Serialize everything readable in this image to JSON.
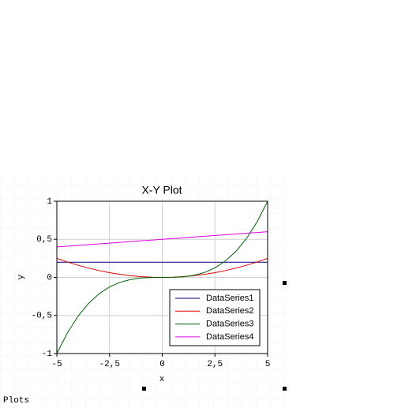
{
  "panel_label": "Plots",
  "chart_data": {
    "type": "line",
    "title": "X-Y Plot",
    "x_label": "x",
    "y_label": "y",
    "x": [
      -5,
      -4.5,
      -4,
      -3.5,
      -3,
      -2.5,
      -2,
      -1.5,
      -1,
      -0.5,
      0,
      0.5,
      1,
      1.5,
      2,
      2.5,
      3,
      3.5,
      4,
      4.5,
      5
    ],
    "series": [
      {
        "name": "DataSeries1",
        "color": "#000080",
        "values": [
          0.2,
          0.2,
          0.2,
          0.2,
          0.2,
          0.2,
          0.2,
          0.2,
          0.2,
          0.2,
          0.2,
          0.2,
          0.2,
          0.2,
          0.2,
          0.2,
          0.2,
          0.2,
          0.2,
          0.2,
          0.2
        ]
      },
      {
        "name": "DataSeries2",
        "color": "#e00000",
        "values": [
          0.25,
          0.2025,
          0.16,
          0.1225,
          0.09,
          0.0625,
          0.04,
          0.0225,
          0.01,
          0.0025,
          0,
          0.0025,
          0.01,
          0.0225,
          0.04,
          0.0625,
          0.09,
          0.1225,
          0.16,
          0.2025,
          0.25
        ]
      },
      {
        "name": "DataSeries3",
        "color": "#006000",
        "values": [
          -1,
          -0.729,
          -0.512,
          -0.343,
          -0.216,
          -0.125,
          -0.064,
          -0.027,
          -0.008,
          -0.001,
          0,
          0.001,
          0.008,
          0.027,
          0.064,
          0.125,
          0.216,
          0.343,
          0.512,
          0.729,
          1
        ]
      },
      {
        "name": "DataSeries4",
        "color": "#e000e0",
        "values": [
          0.4,
          0.41,
          0.42,
          0.43,
          0.44,
          0.45,
          0.46,
          0.47,
          0.48,
          0.49,
          0.5,
          0.51,
          0.52,
          0.53,
          0.54,
          0.55,
          0.56,
          0.57,
          0.58,
          0.59,
          0.6
        ]
      }
    ],
    "xlim": [
      -5,
      5
    ],
    "xticks": [
      -5,
      {
        "value": -2.5,
        "label": "-2,5"
      },
      0,
      {
        "value": 2.5,
        "label": "2,5"
      },
      5
    ],
    "ylim": [
      -1,
      1
    ],
    "yticks": [
      -1,
      {
        "value": -0.5,
        "label": "-0,5"
      },
      0,
      {
        "value": 0.5,
        "label": "0,5"
      },
      1
    ],
    "grid": true,
    "legend": "lower right"
  }
}
